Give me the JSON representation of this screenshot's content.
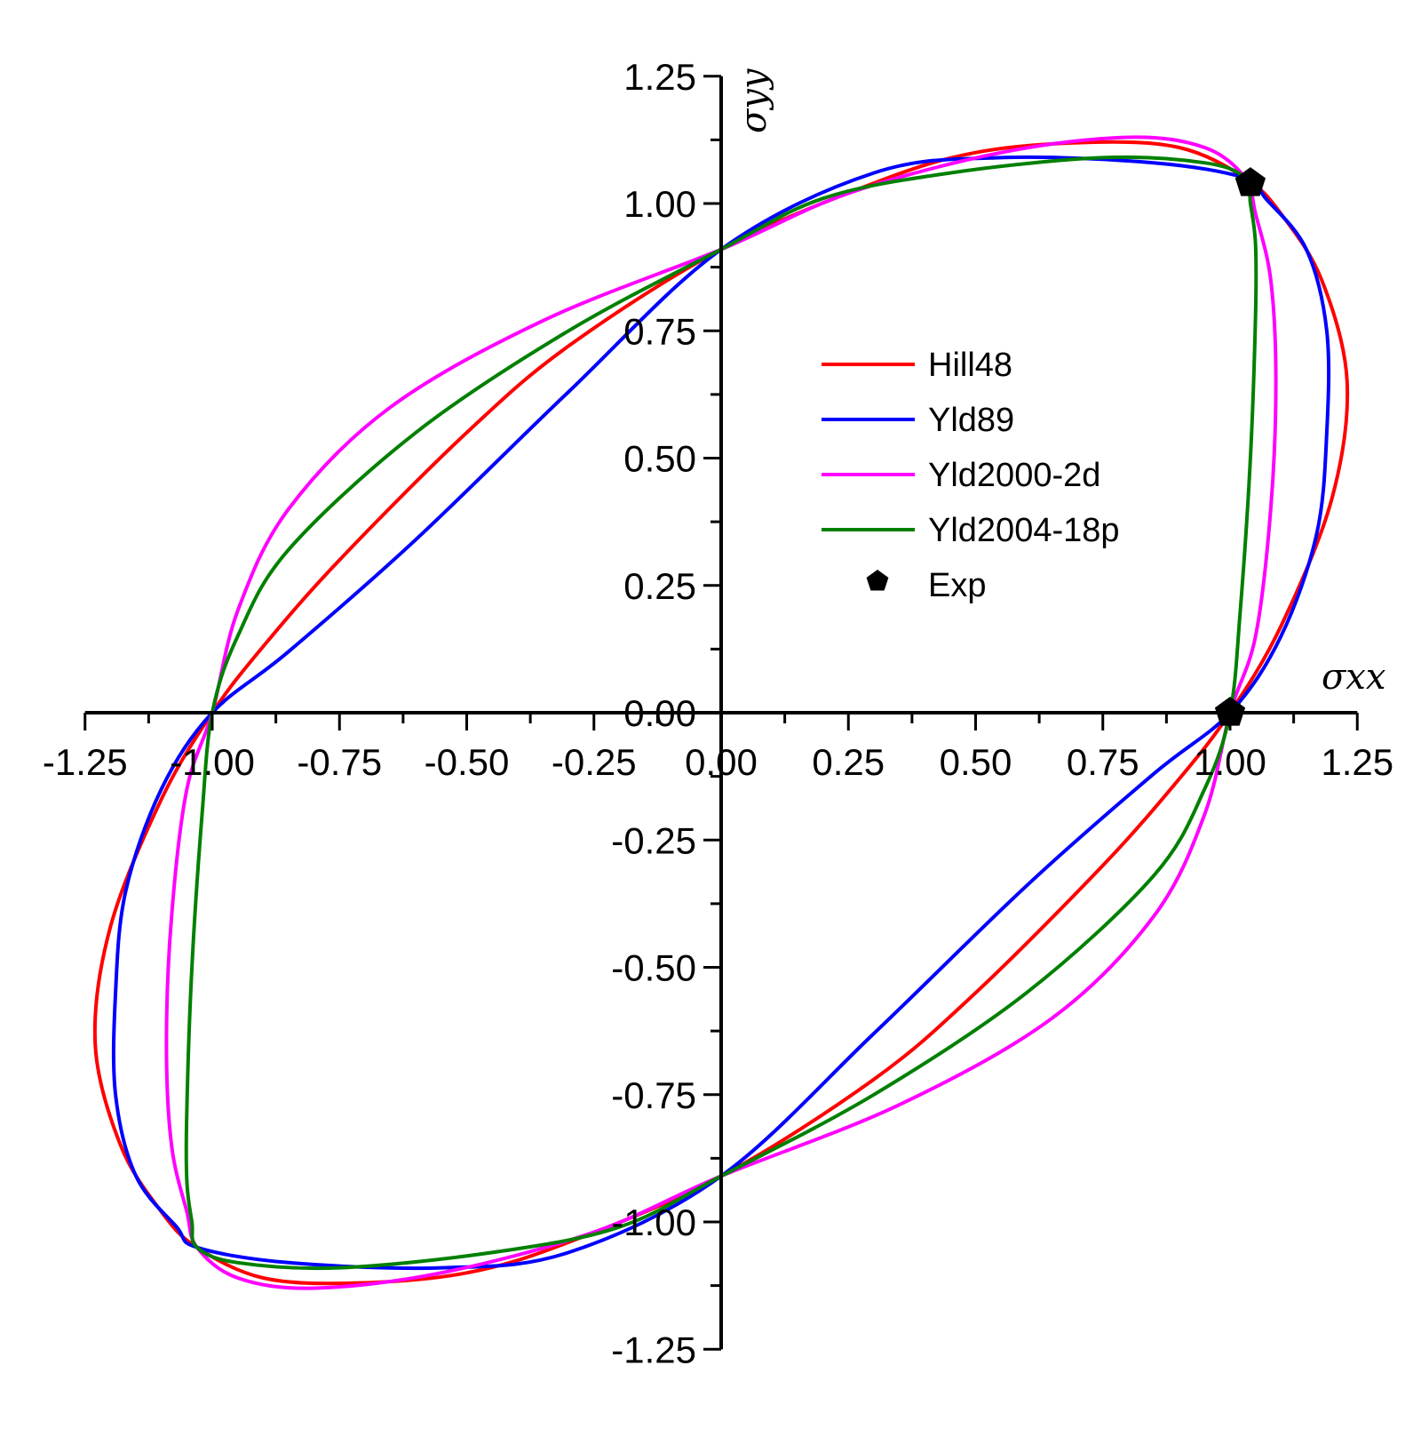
{
  "chart_data": {
    "type": "line",
    "title": "",
    "xlabel": "σxx",
    "ylabel": "σyy",
    "xlim": [
      -1.25,
      1.25
    ],
    "ylim": [
      -1.25,
      1.25
    ],
    "x_ticks": [
      "-1.25",
      "-1.00",
      "-0.75",
      "-0.50",
      "-0.25",
      "0.00",
      "0.25",
      "0.50",
      "0.75",
      "1.00",
      "1.25"
    ],
    "y_ticks": [
      "1.25",
      "1.00",
      "0.75",
      "0.50",
      "0.25",
      "0.00",
      "-0.25",
      "-0.50",
      "-0.75",
      "-1.00",
      "-1.25"
    ],
    "grid": false,
    "legend_position": "center-right",
    "series": [
      {
        "name": "Hill48",
        "color": "#ff0000",
        "x": [
          1.0,
          1.1,
          1.2,
          1.23,
          1.18,
          1.1,
          1.03,
          0.9,
          0.72,
          0.5,
          0.3,
          0.0,
          -0.3,
          -0.5,
          -0.75,
          -0.9,
          -1.0,
          -1.1,
          -1.2,
          -1.23,
          -1.18,
          -1.1,
          -1.03,
          -0.9,
          -0.72,
          -0.5,
          -0.3,
          0.0,
          0.3,
          0.5,
          0.75,
          0.9,
          1.0
        ],
        "y": [
          0.0,
          0.17,
          0.42,
          0.65,
          0.85,
          0.98,
          1.05,
          1.11,
          1.12,
          1.1,
          1.04,
          0.91,
          0.72,
          0.55,
          0.3,
          0.13,
          0.0,
          -0.17,
          -0.42,
          -0.65,
          -0.85,
          -0.98,
          -1.05,
          -1.11,
          -1.12,
          -1.1,
          -1.04,
          -0.91,
          -0.72,
          -0.55,
          -0.3,
          -0.13,
          0.0
        ]
      },
      {
        "name": "Yld89",
        "color": "#0000ff",
        "x": [
          1.0,
          1.1,
          1.17,
          1.19,
          1.19,
          1.15,
          1.07,
          1.03,
          0.85,
          0.55,
          0.3,
          0.0,
          -0.3,
          -0.6,
          -0.85,
          -1.0,
          -1.1,
          -1.17,
          -1.19,
          -1.19,
          -1.15,
          -1.07,
          -1.03,
          -0.85,
          -0.55,
          -0.3,
          0.0,
          0.3,
          0.6,
          0.85,
          1.0
        ],
        "y": [
          0.0,
          0.15,
          0.35,
          0.55,
          0.75,
          0.91,
          1.01,
          1.05,
          1.08,
          1.09,
          1.06,
          0.91,
          0.63,
          0.34,
          0.12,
          0.0,
          -0.15,
          -0.35,
          -0.55,
          -0.75,
          -0.91,
          -1.01,
          -1.05,
          -1.08,
          -1.09,
          -1.06,
          -0.91,
          -0.63,
          -0.34,
          -0.12,
          0.0
        ]
      },
      {
        "name": "Yld2000-2d",
        "color": "#ff00ff",
        "x": [
          1.0,
          1.05,
          1.08,
          1.09,
          1.08,
          1.05,
          1.03,
          0.95,
          0.8,
          0.55,
          0.25,
          0.0,
          -0.35,
          -0.65,
          -0.85,
          -0.95,
          -1.0,
          -1.05,
          -1.08,
          -1.09,
          -1.08,
          -1.05,
          -1.03,
          -0.95,
          -0.8,
          -0.55,
          -0.25,
          0.0,
          0.35,
          0.65,
          0.85,
          0.95,
          1.0
        ],
        "y": [
          0.0,
          0.15,
          0.4,
          0.65,
          0.85,
          0.98,
          1.05,
          1.11,
          1.13,
          1.1,
          1.02,
          0.91,
          0.77,
          0.6,
          0.4,
          0.2,
          0.0,
          -0.15,
          -0.4,
          -0.65,
          -0.85,
          -0.98,
          -1.05,
          -1.11,
          -1.13,
          -1.1,
          -1.02,
          -0.91,
          -0.77,
          -0.6,
          -0.4,
          -0.2,
          0.0
        ]
      },
      {
        "name": "Yld2004-18p",
        "color": "#008000",
        "x": [
          1.0,
          1.02,
          1.04,
          1.05,
          1.05,
          1.04,
          1.03,
          0.95,
          0.75,
          0.45,
          0.2,
          0.0,
          -0.3,
          -0.6,
          -0.85,
          -0.95,
          -1.0,
          -1.02,
          -1.04,
          -1.05,
          -1.05,
          -1.04,
          -1.03,
          -0.95,
          -0.75,
          -0.45,
          -0.2,
          0.0,
          0.3,
          0.6,
          0.85,
          0.95,
          1.0
        ],
        "y": [
          0.0,
          0.2,
          0.5,
          0.78,
          0.92,
          1.0,
          1.05,
          1.08,
          1.09,
          1.06,
          1.01,
          0.91,
          0.75,
          0.55,
          0.32,
          0.15,
          0.0,
          -0.2,
          -0.5,
          -0.78,
          -0.92,
          -1.0,
          -1.05,
          -1.08,
          -1.09,
          -1.06,
          -1.01,
          -0.91,
          -0.75,
          -0.55,
          -0.32,
          -0.15,
          0.0
        ]
      }
    ],
    "points": {
      "name": "Exp",
      "color": "#000000",
      "x": [
        1.0,
        1.04
      ],
      "y": [
        0.0,
        1.04
      ]
    }
  }
}
